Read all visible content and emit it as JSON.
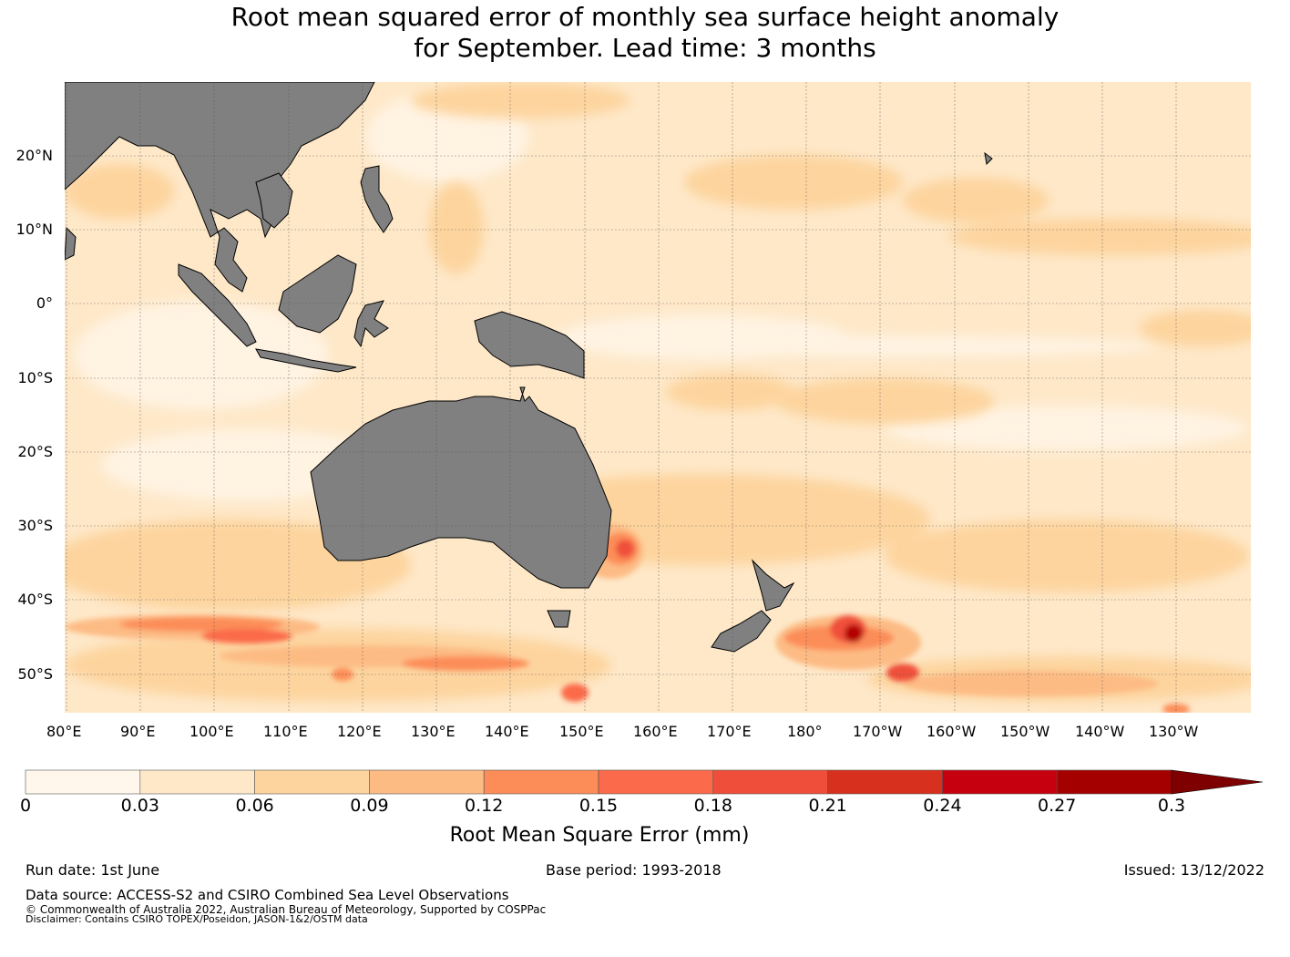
{
  "title": {
    "line1": "Root mean squared error of monthly sea surface height anomaly",
    "line2": "for September. Lead time: 3 months"
  },
  "map": {
    "lat_labels": [
      "20°N",
      "10°N",
      "0°",
      "10°S",
      "20°S",
      "30°S",
      "40°S",
      "50°S"
    ],
    "lon_labels": [
      "80°E",
      "90°E",
      "100°E",
      "110°E",
      "120°E",
      "130°E",
      "140°E",
      "150°E",
      "160°E",
      "170°E",
      "180°",
      "170°W",
      "160°W",
      "150°W",
      "140°W",
      "130°W"
    ],
    "ocean_base_color": "#fee8c8",
    "land_color": "#808080",
    "hotspot_colors": [
      "#fdd49e",
      "#fdbb84",
      "#fc8d59",
      "#ef6548",
      "#d7301f",
      "#b30000"
    ]
  },
  "colorbar": {
    "ticks": [
      "0",
      "0.03",
      "0.06",
      "0.09",
      "0.12",
      "0.15",
      "0.18",
      "0.21",
      "0.24",
      "0.27",
      "0.3"
    ],
    "colors": [
      "#fff7ec",
      "#fee8c8",
      "#fdd49e",
      "#fdbb84",
      "#fc8d59",
      "#fb6a4a",
      "#ef4f3a",
      "#d7301f",
      "#c6000e",
      "#a50000",
      "#7f0000"
    ],
    "label": "Root Mean Square Error (mm)"
  },
  "footer": {
    "run_date": "Run date: 1st June",
    "base_period": "Base period: 1993-2018",
    "issued": "Issued: 13/12/2022",
    "data_source": "Data source: ACCESS-S2 and CSIRO Combined Sea Level Observations",
    "copyright": "© Commonwealth of Australia 2022, Australian Bureau of Meteorology, Supported by COSPPac",
    "disclaimer": "Disclaimer: Contains CSIRO TOPEX/Poseidon, JASON-1&2/OSTM data"
  }
}
